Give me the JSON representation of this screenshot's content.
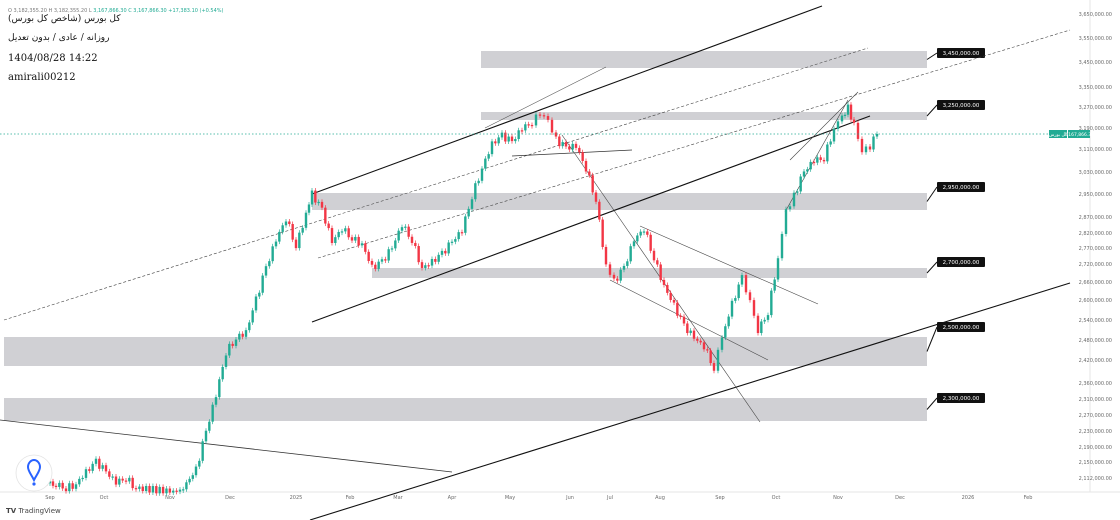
{
  "header": {
    "title": "کل بورس (شاخص کل بورس)",
    "subtitle": "روزانه / عادی / بدون تعدیل",
    "datetime": "1404/08/28 14:22",
    "author": "amirali00212",
    "ticker_strip_prefix": "O 3,182,355.20  H 3,182,355.20  L",
    "ticker_strip_value": "3,167,866.30  C 3,167,866.30  +17,383.10 (+0.54%)"
  },
  "footer": {
    "brand": "TradingView",
    "logo_mark": "TV"
  },
  "colors": {
    "up": "#22ab94",
    "down": "#f23645",
    "zone": "#c8c8cc",
    "label_bg": "#111111",
    "current_price": "#22ab94"
  },
  "chart_data": {
    "type": "candlestick",
    "title": "کل بورس (شاخص کل بورس)",
    "timeframe": "daily",
    "x_axis_labels": [
      "Sep",
      "Oct",
      "Nov",
      "Dec",
      "2025",
      "Feb",
      "Mar",
      "Apr",
      "May",
      "Jun",
      "Jul",
      "Aug",
      "Sep",
      "Oct",
      "Nov",
      "Dec",
      "2026",
      "Feb"
    ],
    "y_axis_labels": [
      "3,650,000.00",
      "3,550,000.00",
      "3,450,000.00",
      "3,350,000.00",
      "3,270,000.00",
      "3,190,000.00",
      "3,110,000.00",
      "3,030,000.00",
      "2,950,000.00",
      "2,870,000.00",
      "2,820,000.00",
      "2,770,000.00",
      "2,720,000.00",
      "2,660,000.00",
      "2,600,000.00",
      "2,540,000.00",
      "2,480,000.00",
      "2,420,000.00",
      "2,360,000.00",
      "2,310,000.00",
      "2,270,000.00",
      "2,230,000.00",
      "2,190,000.00",
      "2,150,000.00",
      "2,112,000.00"
    ],
    "current_price": {
      "label": "کل بورس",
      "value": "3,167,866.30"
    },
    "zones": [
      {
        "label": "3,450,000.00"
      },
      {
        "label": "3,250,000.00"
      },
      {
        "label": "2,950,000.00"
      },
      {
        "label": "2,700,000.00"
      },
      {
        "label": "2,500,000.00"
      },
      {
        "label": "2,300,000.00"
      }
    ],
    "scale": "log",
    "grid": false
  }
}
